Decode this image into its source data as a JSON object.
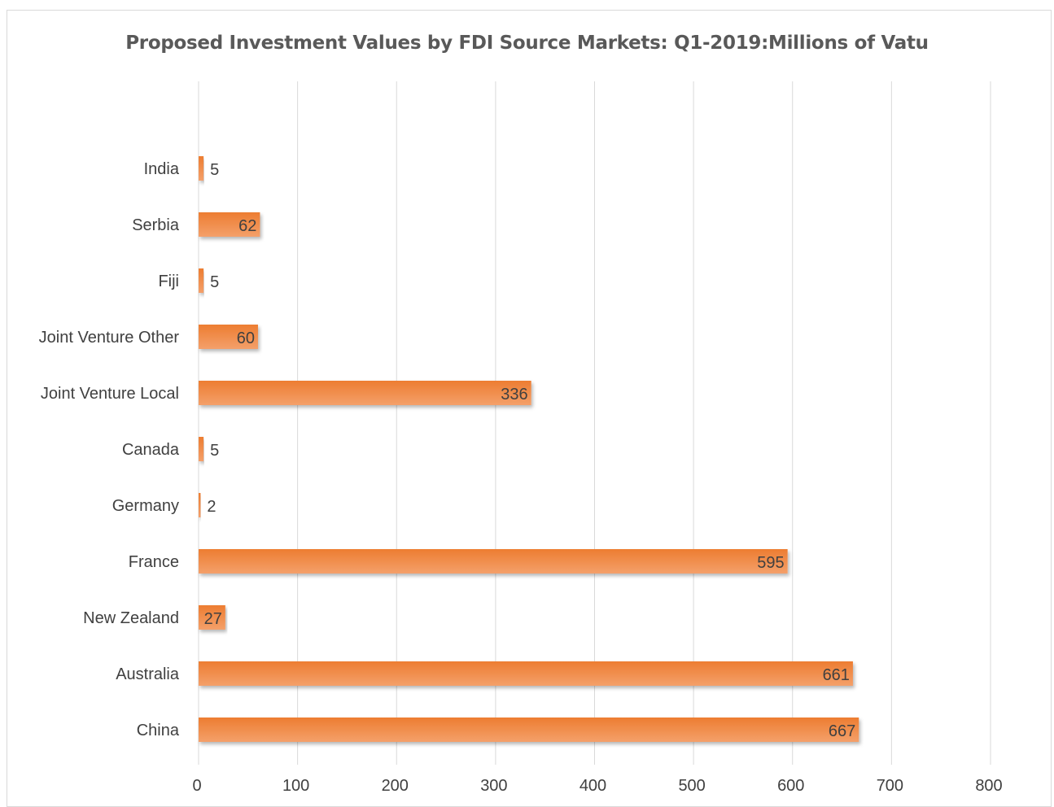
{
  "chart_data": {
    "type": "bar",
    "orientation": "horizontal",
    "title": "Proposed Investment Values by FDI Source Markets: Q1-2019:Millions of Vatu",
    "categories": [
      "China",
      "Australia",
      "New Zealand",
      "France",
      "Germany",
      "Canada",
      "Joint Venture Local",
      "Joint Venture Other",
      "Fiji",
      "Serbia",
      "India"
    ],
    "values": [
      667,
      661,
      27,
      595,
      2,
      5,
      336,
      60,
      5,
      62,
      5
    ],
    "xlim": [
      0,
      800
    ],
    "xticks": [
      0,
      100,
      200,
      300,
      400,
      500,
      600,
      700,
      800
    ],
    "grid": true,
    "legend": "none",
    "colors": {
      "bar": "#ED7D31",
      "bar_light": "#F4A06A",
      "grid": "#d9d9d9",
      "text": "#404040"
    }
  }
}
